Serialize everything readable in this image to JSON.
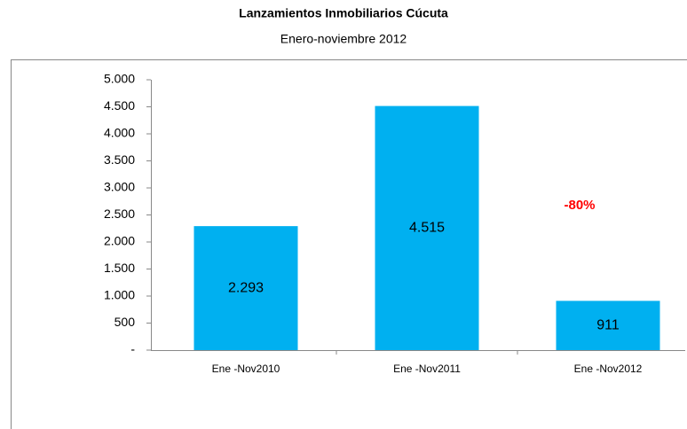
{
  "chart_data": {
    "type": "bar",
    "title": "Lanzamientos Inmobiliarios Cúcuta",
    "subtitle": "Enero-noviembre 2012",
    "categories": [
      "Ene -Nov2010",
      "Ene -Nov2011",
      "Ene -Nov2012"
    ],
    "values": [
      2293,
      4515,
      911
    ],
    "value_labels": [
      "2.293",
      "4.515",
      "911"
    ],
    "color": "#00b0f0",
    "ylim": [
      0,
      5000
    ],
    "yticks": [
      {
        "value": 0,
        "label": "-"
      },
      500,
      {
        "value": 1000,
        "label": "1.000"
      },
      {
        "value": 1500,
        "label": "1.500"
      },
      {
        "value": 2000,
        "label": "2.000"
      },
      {
        "value": 2500,
        "label": "2.500"
      },
      {
        "value": 3000,
        "label": "3.000"
      },
      {
        "value": 3500,
        "label": "3.500"
      },
      {
        "value": 4000,
        "label": "4.000"
      },
      {
        "value": 4500,
        "label": "4.500"
      },
      {
        "value": 5000,
        "label": "5.000"
      }
    ],
    "annotation": "-80%",
    "annotation_color": "#ff0000"
  }
}
